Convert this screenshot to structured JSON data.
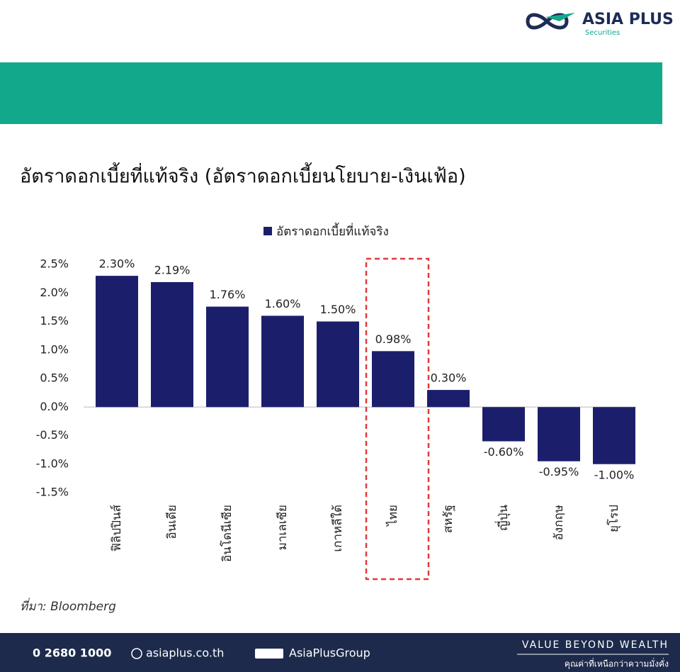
{
  "header": {
    "logo": "ASIA PLUS",
    "logo_sub": "Securities"
  },
  "chart_data": {
    "type": "bar",
    "title": "อัตราดอกเบี้ยที่แท้จริง (อัตราดอกเบี้ยนโยบาย-เงินเฟ้อ)",
    "categories": [
      "ฟิลิปปินส์",
      "อินเดีย",
      "อินโดนีเซีย",
      "มาเลเซีย",
      "เกาหลีใต้",
      "ไทย",
      "สหรัฐ",
      "ญี่ปุ่น",
      "อังกฤษ",
      "ยุโรป"
    ],
    "series": [
      {
        "name": "อัตราดอกเบี้ยที่แท้จริง",
        "color": "#1b1f6b",
        "values": [
          2.3,
          2.19,
          1.76,
          1.6,
          1.5,
          0.98,
          0.3,
          -0.6,
          -0.95,
          -1.0
        ],
        "value_labels": [
          "2.30%",
          "2.19%",
          "1.76%",
          "1.60%",
          "1.50%",
          "0.98%",
          "0.30%",
          "-0.60%",
          "-0.95%",
          "-1.00%"
        ]
      }
    ],
    "ylim": [
      -1.5,
      2.5
    ],
    "yticks": [
      {
        "value": 2.5,
        "label": "2.5%"
      },
      {
        "value": 2.0,
        "label": "2.0%"
      },
      {
        "value": 1.5,
        "label": "1.5%"
      },
      {
        "value": 1.0,
        "label": "1.0%"
      },
      {
        "value": 0.5,
        "label": "0.5%"
      },
      {
        "value": 0.0,
        "label": "0.0%"
      },
      {
        "value": -0.5,
        "label": "-0.5%"
      },
      {
        "value": -1.0,
        "label": "-1.0%"
      },
      {
        "value": -1.5,
        "label": "-1.5%"
      }
    ],
    "grid": false,
    "legend": "top",
    "highlight": 5
  },
  "source": "ที่มา: Bloomberg",
  "footer": {
    "phone": "0 2680 1000",
    "website": "asiaplus.co.th",
    "social": "AsiaPlusGroup",
    "slogan": "VALUE BEYOND WEALTH",
    "slogan_th": "คุณค่าที่เหนือกว่าความมั่งคั่ง"
  }
}
